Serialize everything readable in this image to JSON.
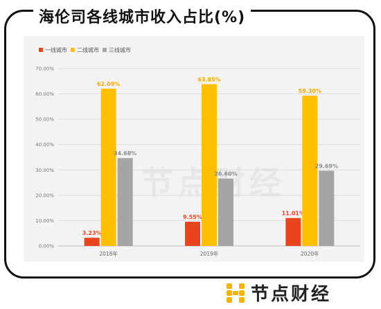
{
  "header": {
    "title": "海伦司各线城市收入占比(%)"
  },
  "branding": {
    "logo_text": "节点财经",
    "watermark_text": "节点财经"
  },
  "colors": {
    "series": [
      "#e8451f",
      "#ffbf00",
      "#a5a5a5"
    ],
    "label_colors": [
      "#e8451f",
      "#f2a900",
      "#8c8c8c"
    ],
    "logo_gold": "#f5b400"
  },
  "chart_data": {
    "type": "bar",
    "categories": [
      "2018年",
      "2019年",
      "2020年"
    ],
    "series": [
      {
        "name": "一线城市",
        "values": [
          3.23,
          9.55,
          11.01
        ],
        "labels": [
          "3.23%",
          "9.55%",
          "11.01%"
        ]
      },
      {
        "name": "二线城市",
        "values": [
          62.09,
          63.85,
          59.3
        ],
        "labels": [
          "62.09%",
          "63.85%",
          "59.30%"
        ]
      },
      {
        "name": "三线城市",
        "values": [
          34.68,
          26.6,
          29.69
        ],
        "labels": [
          "34.68%",
          "26.60%",
          "29.69%"
        ]
      }
    ],
    "ylim": [
      0,
      70
    ],
    "yticks": [
      "0.00%",
      "10.00%",
      "20.00%",
      "30.00%",
      "40.00%",
      "50.00%",
      "60.00%",
      "70.00%"
    ],
    "grid": true,
    "legend": "top-left"
  }
}
